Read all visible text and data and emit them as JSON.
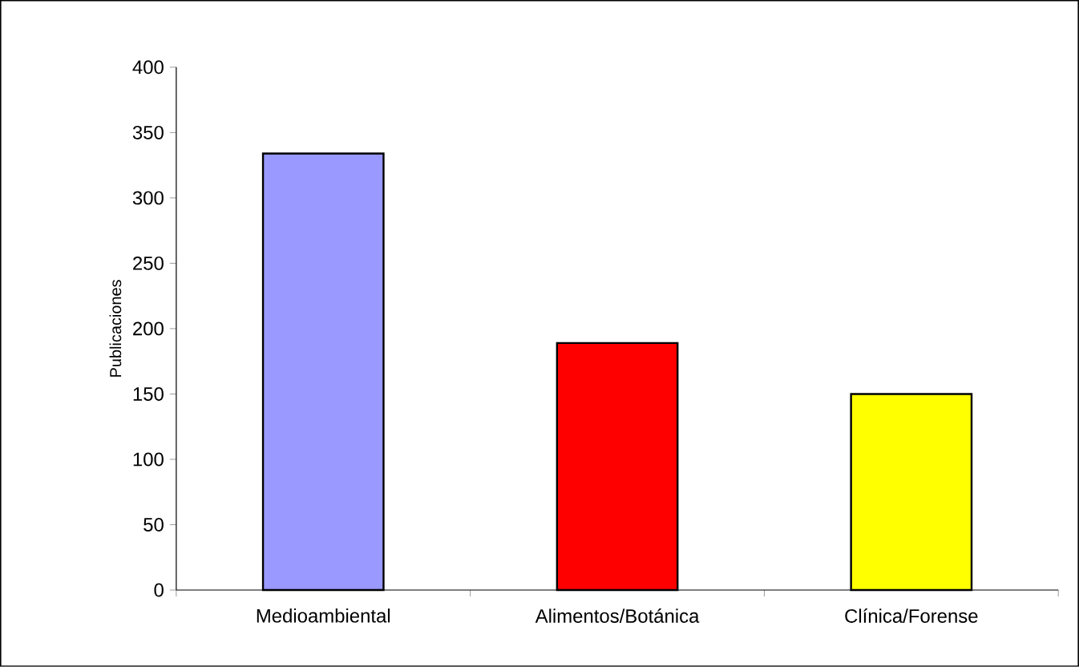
{
  "chart_data": {
    "type": "bar",
    "ylabel": "Publicaciones",
    "categories": [
      "Medioambiental",
      "Alimentos/Botánica",
      "Clínica/Forense"
    ],
    "values": [
      334,
      189,
      150
    ],
    "colors": [
      "#9999ff",
      "#ff0000",
      "#ffff00"
    ],
    "ylim": [
      0,
      400
    ],
    "yticks": [
      0,
      50,
      100,
      150,
      200,
      250,
      300,
      350,
      400
    ],
    "grid": false
  }
}
